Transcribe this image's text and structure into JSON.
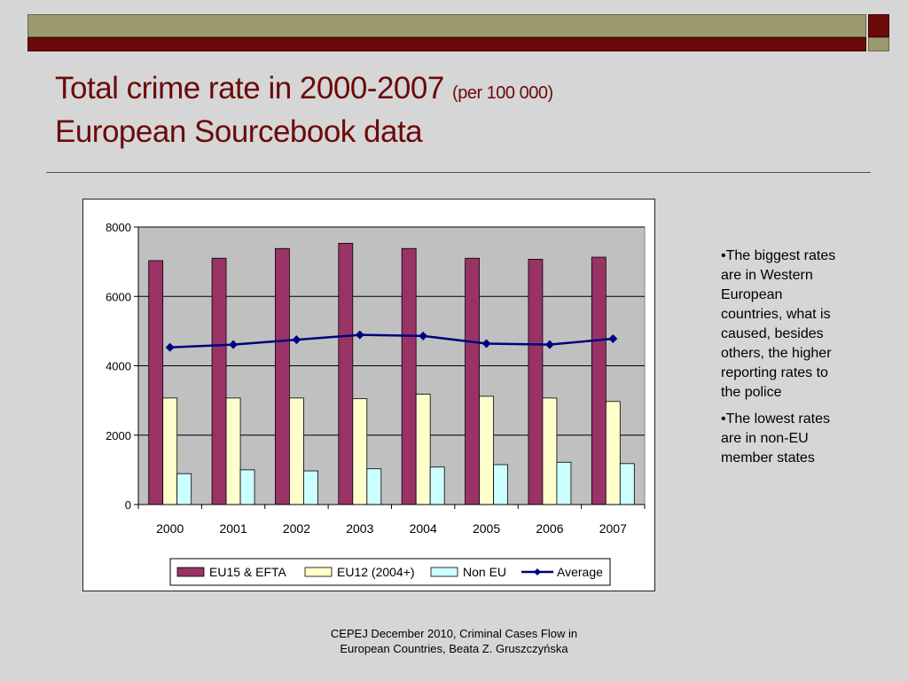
{
  "slide": {
    "title_main": "Total crime rate in 2000-2007",
    "title_unit": "(per 100 000)",
    "title_line2": "European Sourcebook data",
    "bullets": [
      "•The biggest rates are in Western European countries, what is caused, besides others, the higher reporting rates to the police",
      "•The lowest rates are in non-EU member states"
    ],
    "footer_line1": "CEPEJ December 2010, Criminal Cases Flow in",
    "footer_line2": "European Countries, Beata Z. Gruszczyńska"
  },
  "colors": {
    "accent_red": "#6b0a0a",
    "accent_olive": "#9b9a6e",
    "eu15": "#993366",
    "eu12": "#ffffcc",
    "noneu": "#ccffff",
    "average": "#000080",
    "plot_bg": "#c0c0c0"
  },
  "chart_data": {
    "type": "bar",
    "categories": [
      "2000",
      "2001",
      "2002",
      "2003",
      "2004",
      "2005",
      "2006",
      "2007"
    ],
    "series": [
      {
        "name": "EU15 & EFTA",
        "type": "bar",
        "values": [
          7030,
          7100,
          7380,
          7530,
          7380,
          7100,
          7070,
          7130
        ]
      },
      {
        "name": "EU12 (2004+)",
        "type": "bar",
        "values": [
          3070,
          3070,
          3070,
          3050,
          3180,
          3120,
          3070,
          2970
        ]
      },
      {
        "name": "Non EU",
        "type": "bar",
        "values": [
          890,
          1000,
          970,
          1030,
          1080,
          1150,
          1220,
          1180
        ]
      },
      {
        "name": "Average",
        "type": "line",
        "values": [
          4530,
          4610,
          4750,
          4890,
          4860,
          4640,
          4610,
          4780
        ]
      }
    ],
    "y_ticks": [
      "0",
      "2000",
      "4000",
      "6000",
      "8000"
    ],
    "ylim": [
      0,
      8000
    ],
    "grid": true,
    "legend_position": "bottom",
    "title": "",
    "xlabel": "",
    "ylabel": ""
  }
}
